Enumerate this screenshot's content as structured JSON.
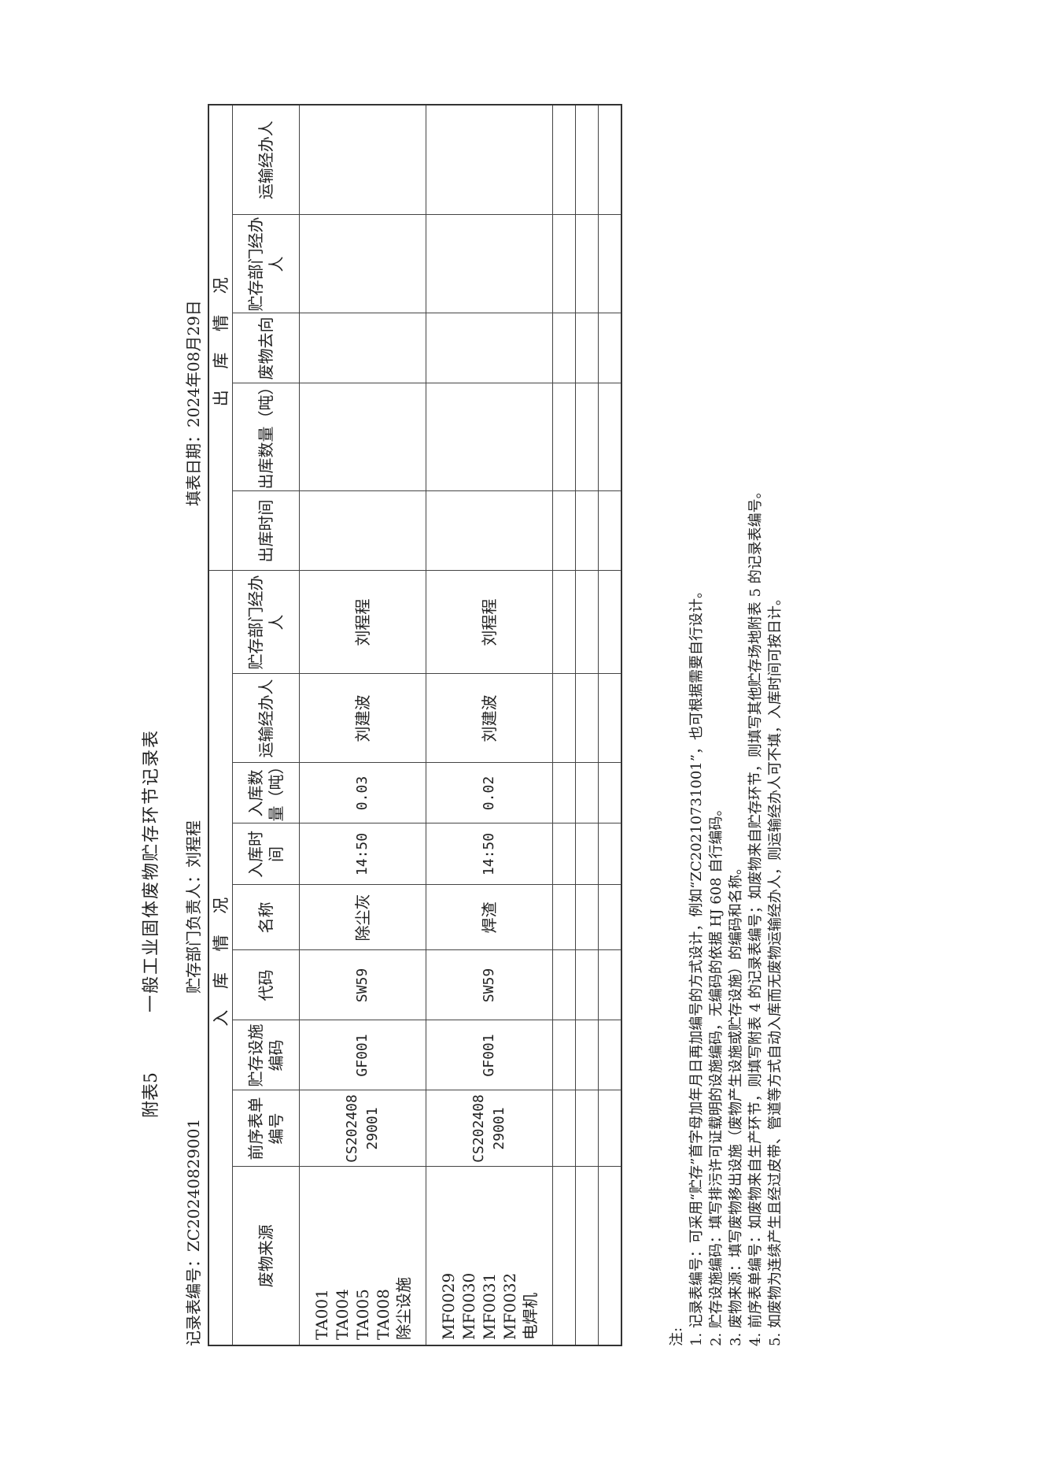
{
  "header": {
    "appendix": "附表5",
    "title": "一般工业固体废物贮存环节记录表",
    "record_no": "记录表编号：ZC20240829001",
    "manager": "贮存部门负责人：刘程程",
    "fill_date": "填表日期：2024年08月29日"
  },
  "table": {
    "groups": [
      "入 库 情 况",
      "出 库 情 况"
    ],
    "columns": [
      "废物来源",
      "前序表单编号",
      "贮存设施编码",
      "代码",
      "名称",
      "入库时间",
      "入库数量（吨）",
      "运输经办人",
      "贮存部门经办人",
      "出库时间",
      "出库数量（吨）",
      "废物去向",
      "贮存部门经办人",
      "运输经办人"
    ],
    "rows": [
      [
        "TA001\nTA004\nTA005\nTA008\n除尘设施",
        "CS202408\n29001",
        "GF001",
        "SW59",
        "除尘灰",
        "14:50",
        "0.03",
        "刘建波",
        "刘程程",
        "",
        "",
        "",
        "",
        ""
      ],
      [
        "MF0029\nMF0030\nMF0031\nMF0032\n电焊机",
        "CS202408\n29001",
        "GF001",
        "SW59",
        "焊渣",
        "14:50",
        "0.02",
        "刘建波",
        "刘程程",
        "",
        "",
        "",
        "",
        ""
      ],
      [
        "",
        "",
        "",
        "",
        "",
        "",
        "",
        "",
        "",
        "",
        "",
        "",
        "",
        ""
      ],
      [
        "",
        "",
        "",
        "",
        "",
        "",
        "",
        "",
        "",
        "",
        "",
        "",
        "",
        ""
      ],
      [
        "",
        "",
        "",
        "",
        "",
        "",
        "",
        "",
        "",
        "",
        "",
        "",
        "",
        ""
      ]
    ]
  },
  "notes": {
    "label": "注:",
    "items": [
      "1. 记录表编号：可采用“贮存”首字母加年月日再加编号的方式设计，例如“ZC20210731001”，也可根据需要自行设计。",
      "2. 贮存设施编码：填写排污许可证载明的设施编码，无编码的依据 HJ 608 自行编码。",
      "3. 废物来源：填写废物移出设施（废物产生设施或贮存设施）的编码和名称。",
      "4. 前序表单编号：如废物来自生产环节，则填写附表 4 的记录表编号；如废物来自贮存环节，则填写其他贮存场地附表 5 的记录表编号。",
      "5. 如废物为连续产生且经过皮带、管道等方式自动入库而无废物运输经办人，则运输经办人可不填，入库时间可按日计。"
    ]
  }
}
